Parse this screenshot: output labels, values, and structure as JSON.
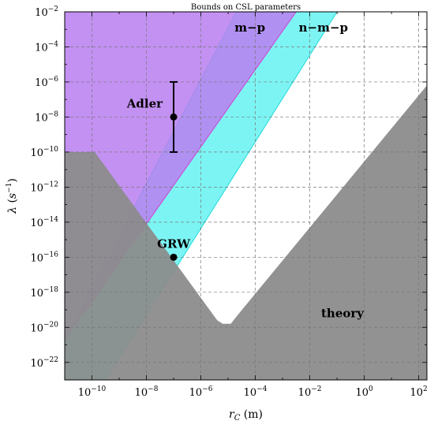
{
  "chart_data": {
    "type": "area",
    "title": "Bounds on CSL parameters",
    "xlabel": "r_C (m)",
    "ylabel": "λ (s^-1)",
    "x_scale": "log10",
    "y_scale": "log10",
    "xlim_log10": [
      -11.0,
      2.3
    ],
    "ylim_log10": [
      -23.0,
      -2.0
    ],
    "x_ticks_log10": [
      -10,
      -8,
      -6,
      -4,
      -2,
      0,
      2
    ],
    "y_ticks_log10": [
      -2,
      -4,
      -6,
      -8,
      -10,
      -12,
      -14,
      -16,
      -18,
      -20,
      -22
    ],
    "grid": true,
    "regions": [
      {
        "name": "n−m−p",
        "color": "#66f2f2",
        "polygon_log10": [
          [
            -11.0,
            -23.0
          ],
          [
            -11.0,
            -20.7
          ],
          [
            -4.7,
            -2.0
          ],
          [
            -1.0,
            -2.0
          ],
          [
            -9.5,
            -23.0
          ]
        ]
      },
      {
        "name": "m−p",
        "color": "#b87ef0",
        "polygon_log10": [
          [
            -11.0,
            -20.7
          ],
          [
            -11.0,
            -2.0
          ],
          [
            -2.5,
            -2.0
          ]
        ]
      },
      {
        "name": "theory",
        "color": "#8c8c8c",
        "polygon_log10": [
          [
            -11.0,
            -23.0
          ],
          [
            -11.0,
            -10.0
          ],
          [
            -9.9,
            -10.0
          ],
          [
            -5.4,
            -19.6
          ],
          [
            -5.2,
            -19.8
          ],
          [
            -4.9,
            -19.8
          ],
          [
            -4.7,
            -19.4
          ],
          [
            2.3,
            -6.2
          ],
          [
            2.3,
            -23.0
          ],
          [
            -9.5,
            -23.0
          ]
        ]
      }
    ],
    "points": [
      {
        "name": "Adler",
        "x_log10": -7.0,
        "y_log10": -8.0,
        "y_err_log10": [
          -10.0,
          -6.0
        ]
      },
      {
        "name": "GRW",
        "x_log10": -7.0,
        "y_log10": -16.0
      }
    ]
  }
}
